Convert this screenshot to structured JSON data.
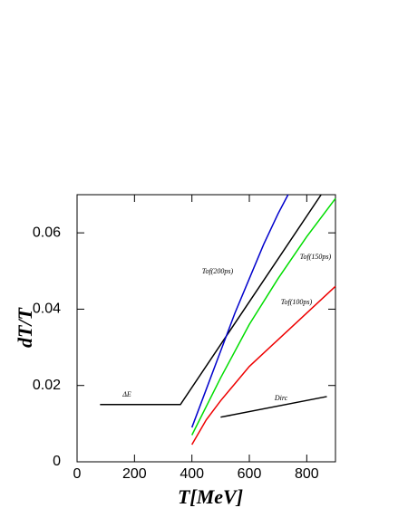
{
  "chart_data": {
    "type": "line",
    "x_label": "T[MeV]",
    "y_label": "dT/T",
    "xlim": [
      0,
      900
    ],
    "ylim": [
      0,
      0.07
    ],
    "xticks": [
      0,
      200,
      400,
      600,
      800
    ],
    "yticks": [
      0,
      0.02,
      0.04,
      0.06
    ],
    "legend": false,
    "series": [
      {
        "name": "ΔE",
        "color": "#000000",
        "x": [
          80,
          360,
          850
        ],
        "values": [
          0.015,
          0.015,
          0.07
        ]
      },
      {
        "name": "Tof(200ps)",
        "color": "#0000cc",
        "x": [
          400,
          450,
          500,
          550,
          600,
          650,
          700,
          735
        ],
        "values": [
          0.009,
          0.019,
          0.029,
          0.039,
          0.048,
          0.057,
          0.065,
          0.07
        ]
      },
      {
        "name": "Tof(150ps)",
        "color": "#00dd00",
        "x": [
          400,
          500,
          600,
          700,
          800,
          900
        ],
        "values": [
          0.007,
          0.022,
          0.036,
          0.048,
          0.059,
          0.069
        ]
      },
      {
        "name": "Tof(100ps)",
        "color": "#ee0000",
        "x": [
          400,
          450,
          500,
          600,
          700,
          800,
          900
        ],
        "values": [
          0.0045,
          0.011,
          0.016,
          0.025,
          0.032,
          0.039,
          0.046
        ]
      },
      {
        "name": "Dirc",
        "color": "#000000",
        "x": [
          500,
          870
        ],
        "values": [
          0.0117,
          0.0171
        ]
      }
    ]
  }
}
